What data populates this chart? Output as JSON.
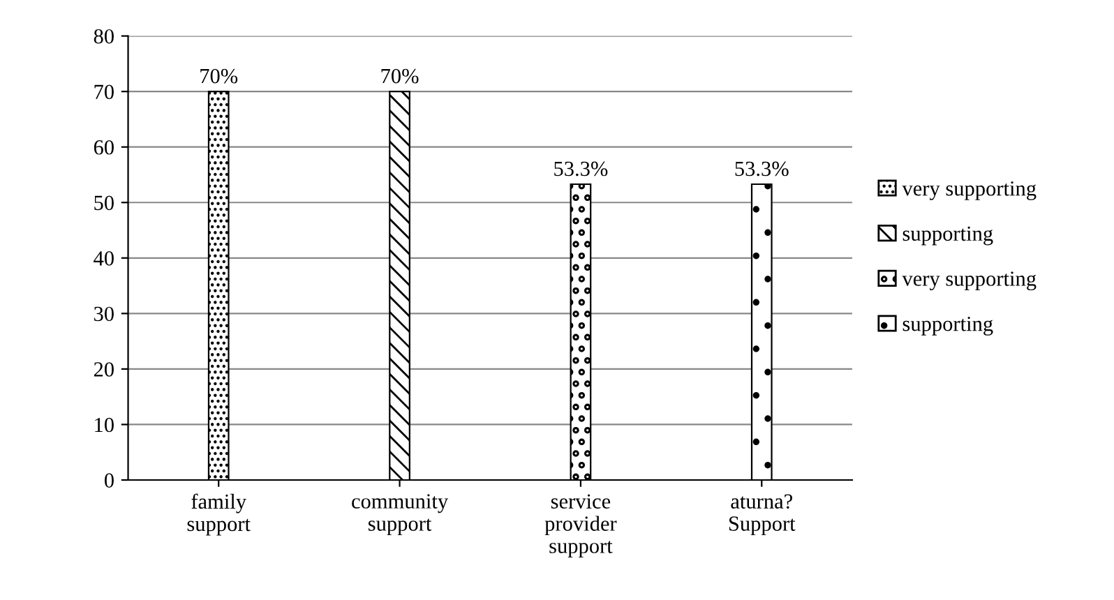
{
  "chart_data": {
    "type": "bar",
    "stacked": true,
    "categories": [
      "family\nsupport",
      "community\nsupport",
      "service\nprovider\nsupport",
      "aturna?\nSupport"
    ],
    "series": [
      {
        "name": "very supporting",
        "color": "#000000",
        "values": [
          70,
          null,
          null,
          null
        ],
        "value_labels": [
          "70%",
          null,
          null,
          null
        ]
      },
      {
        "name": "supporting",
        "color": "#000000",
        "values": [
          null,
          70,
          null,
          null
        ],
        "value_labels": [
          null,
          "70%",
          null,
          null
        ]
      },
      {
        "name": "very supporting",
        "color": "#000000",
        "values": [
          null,
          null,
          53.3,
          null
        ],
        "value_labels": [
          null,
          null,
          "53.3%",
          null
        ]
      },
      {
        "name": "supporting",
        "color": "#000000",
        "values": [
          null,
          null,
          null,
          53.3
        ],
        "value_labels": [
          null,
          null,
          null,
          "53.3%"
        ]
      }
    ],
    "ylim": [
      0,
      80
    ],
    "yticks": [
      0,
      10,
      20,
      30,
      40,
      50,
      60,
      70,
      80
    ],
    "grid": "y",
    "legend": "right"
  }
}
